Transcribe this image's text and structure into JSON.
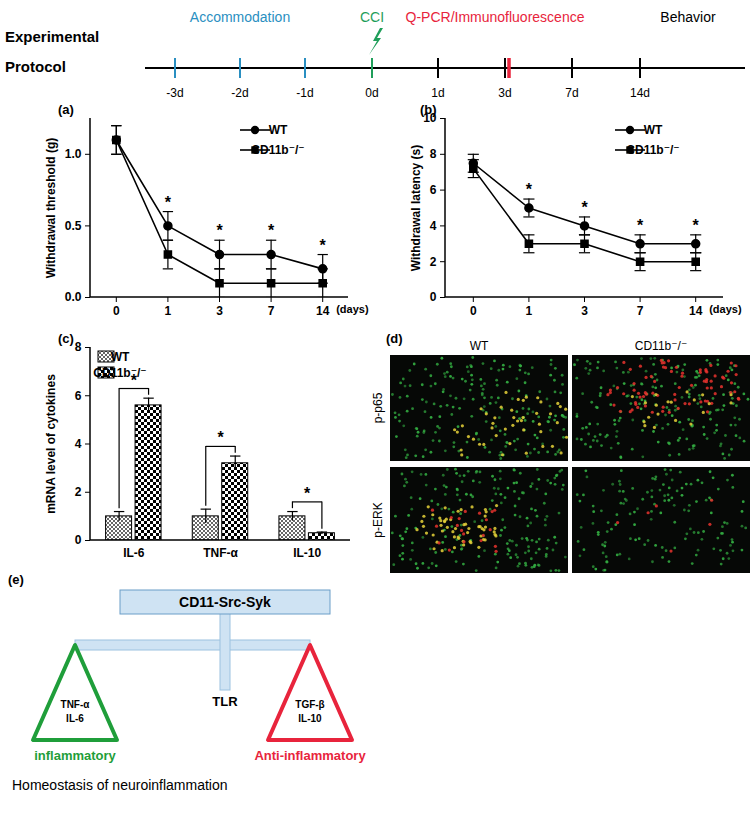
{
  "protocol": {
    "title": [
      "Experimental",
      "Protocol"
    ],
    "days": [
      "-3d",
      "-2d",
      "-1d",
      "0d",
      "1d",
      "3d",
      "7d",
      "14d"
    ],
    "phases": [
      {
        "label": "Accommodation",
        "color": "#2a8fc1",
        "days": [
          "-3d",
          "-2d",
          "-1d"
        ]
      },
      {
        "label": "CCI",
        "color": "#1f9e5a",
        "days": [
          "0d"
        ]
      },
      {
        "label": "Q-PCR/Immunofluorescence",
        "color": "#e8243c",
        "days": [
          "3d"
        ]
      },
      {
        "label": "Behavior",
        "color": "#000000",
        "days": [
          "1d",
          "3d",
          "7d",
          "14d"
        ]
      }
    ]
  },
  "chart_data": [
    {
      "panel_label": "(a)",
      "type": "line",
      "x_label": "(days)",
      "y_label": "Withdrawal threshold (g)",
      "categories": [
        "0",
        "1",
        "3",
        "7",
        "14"
      ],
      "series": [
        {
          "name": "WT",
          "color": "#000000",
          "marker": "circle",
          "values": [
            1.1,
            0.5,
            0.3,
            0.3,
            0.2
          ],
          "errors": [
            0.1,
            0.1,
            0.1,
            0.1,
            0.1
          ]
        },
        {
          "name": "CD11b⁻/⁻",
          "color": "#000000",
          "marker": "square",
          "values": [
            1.1,
            0.3,
            0.1,
            0.1,
            0.1
          ],
          "errors": [
            0.1,
            0.1,
            0.1,
            0.1,
            0.1
          ]
        }
      ],
      "ylim": [
        0,
        1.25
      ],
      "yticks": [
        {
          "value": 0,
          "label": "0.0"
        },
        {
          "value": 0.5,
          "label": "0.5"
        },
        {
          "value": 1,
          "label": "1.0"
        }
      ],
      "legend": "top-right",
      "annotations": [
        {
          "category": "1",
          "text": "*"
        },
        {
          "category": "3",
          "text": "*"
        },
        {
          "category": "7",
          "text": "*"
        },
        {
          "category": "14",
          "text": "*"
        }
      ]
    },
    {
      "panel_label": "(b)",
      "type": "line",
      "x_label": "(days)",
      "y_label": "Withdrawal latency (s)",
      "categories": [
        "0",
        "1",
        "3",
        "7",
        "14"
      ],
      "series": [
        {
          "name": "WT",
          "color": "#000000",
          "marker": "circle",
          "values": [
            7.5,
            5,
            4,
            3,
            3
          ],
          "errors": [
            0.5,
            0.5,
            0.5,
            0.5,
            0.5
          ]
        },
        {
          "name": "CD11b⁻/⁻",
          "color": "#000000",
          "marker": "square",
          "values": [
            7.2,
            3,
            3,
            2,
            2
          ],
          "errors": [
            0.5,
            0.5,
            0.5,
            0.5,
            0.5
          ]
        }
      ],
      "ylim": [
        0,
        10
      ],
      "yticks": [
        0,
        2,
        4,
        6,
        8,
        10
      ],
      "legend": "top-right",
      "annotations": [
        {
          "category": "1",
          "text": "*"
        },
        {
          "category": "3",
          "text": "*"
        },
        {
          "category": "7",
          "text": "*"
        },
        {
          "category": "14",
          "text": "*"
        }
      ]
    },
    {
      "panel_label": "(c)",
      "type": "bar",
      "y_label": "mRNA level of cytokines",
      "categories": [
        "IL-6",
        "TNF-α",
        "IL-10"
      ],
      "series": [
        {
          "name": "WT",
          "color": "#000000",
          "values": [
            1,
            1,
            1
          ],
          "errors": [
            0.2,
            0.3,
            0.2
          ]
        },
        {
          "name": "CD11b⁻/⁻",
          "color": "#000000",
          "values": [
            5.6,
            3.2,
            0.3
          ],
          "errors": [
            0.3,
            0.3,
            0.05
          ]
        }
      ],
      "ylim": [
        0,
        8
      ],
      "yticks": [
        0,
        2,
        4,
        6,
        8
      ],
      "legend": "top-left",
      "annotations": [
        {
          "category": "IL-6",
          "text": "*"
        },
        {
          "category": "TNF-α",
          "text": "*"
        },
        {
          "category": "IL-10",
          "text": "*"
        }
      ]
    }
  ],
  "panel_d": {
    "panel_label": "(d)",
    "columns": [
      "WT",
      "CD11b⁻/⁻"
    ],
    "rows": [
      "p-p65",
      "p-ERK"
    ]
  },
  "panel_e": {
    "panel_label": "(e)",
    "box": "CD11-Src-Syk",
    "left": {
      "lines": [
        "TNF-α",
        "IL-6"
      ],
      "label": "inflammatory",
      "color": "#1f9e3a"
    },
    "center": "TLR",
    "right": {
      "lines": [
        "TGF-β",
        "IL-10"
      ],
      "label": "Anti-inflammatory",
      "color": "#e8243c"
    },
    "caption": "Homeostasis of neuroinflammation"
  }
}
